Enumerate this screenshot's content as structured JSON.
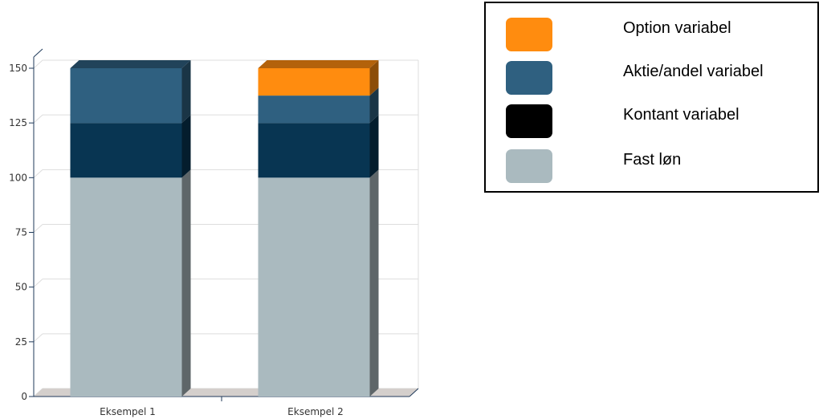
{
  "chart_data": {
    "type": "bar",
    "stacked": true,
    "categories": [
      "Eksempel 1",
      "Eksempel 2"
    ],
    "series": [
      {
        "name": "Fast løn",
        "values": [
          100,
          100
        ],
        "color": "#aababf"
      },
      {
        "name": "Kontant variabel",
        "values": [
          25,
          25
        ],
        "color": "#083552"
      },
      {
        "name": "Aktie/andel variabel",
        "values": [
          25,
          12.5
        ],
        "color": "#2f6080"
      },
      {
        "name": "Option variabel",
        "values": [
          0,
          12.5
        ],
        "color": "#ff8c0f"
      }
    ],
    "ylim": [
      0,
      150
    ],
    "yticks": [
      "0",
      "25",
      "50",
      "75",
      "100",
      "125",
      "150"
    ],
    "grid": true,
    "legend_position": "right"
  },
  "legend": {
    "items": [
      {
        "label": "Option variabel",
        "color": "#ff8c0f"
      },
      {
        "label": "Aktie/andel variabel",
        "color": "#2f6080"
      },
      {
        "label": "Kontant variabel",
        "color": "#000000"
      },
      {
        "label": "Fast løn",
        "color": "#aababf"
      }
    ]
  }
}
